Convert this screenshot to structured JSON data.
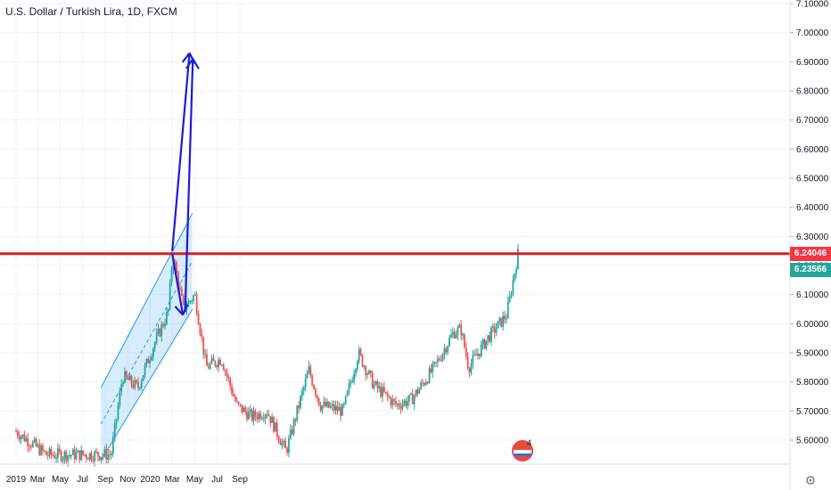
{
  "header": {
    "title": "U.S. Dollar / Turkish Lira, 1D, FXCM"
  },
  "price_labels": {
    "resistance": "6.24046",
    "last": "6.23566",
    "resistance_color": "#f23645",
    "last_color": "#26a69a"
  },
  "badge": {
    "text": "4",
    "icon": "flag-badge-icon"
  },
  "corner_icon": "settings-icon",
  "chart_data": {
    "type": "candlestick",
    "symbol": "U.S. Dollar / Turkish Lira",
    "interval": "1D",
    "source": "FXCM",
    "yaxis": {
      "ticks": [
        "5.60000",
        "5.70000",
        "5.80000",
        "5.90000",
        "6.00000",
        "6.10000",
        "6.20000",
        "6.30000",
        "6.40000",
        "6.50000",
        "6.60000",
        "6.70000",
        "6.80000",
        "6.90000",
        "7.00000",
        "7.10000"
      ],
      "ylim": [
        5.55,
        7.12
      ]
    },
    "xaxis": {
      "ticks": [
        "2019",
        "Mar",
        "May",
        "Jul",
        "Sep",
        "Nov",
        "2020",
        "Mar",
        "May",
        "Jul",
        "Sep"
      ]
    },
    "colors": {
      "up": "#26a69a",
      "down": "#ef5350",
      "channel": "#2196f3",
      "arrows": "#1b1bd6",
      "resistance": "#e01e1e"
    },
    "resistance_level": 6.24046,
    "last_price": 6.23566,
    "price_path": [
      {
        "t": 0,
        "p": 5.63
      },
      {
        "t": 0.04,
        "p": 5.55
      },
      {
        "t": 0.125,
        "p": 5.55
      },
      {
        "t": 0.14,
        "p": 5.82
      },
      {
        "t": 0.16,
        "p": 5.78
      },
      {
        "t": 0.18,
        "p": 5.92
      },
      {
        "t": 0.2,
        "p": 6.04
      },
      {
        "t": 0.206,
        "p": 6.24
      },
      {
        "t": 0.22,
        "p": 6.05
      },
      {
        "t": 0.235,
        "p": 6.1
      },
      {
        "t": 0.25,
        "p": 5.85
      },
      {
        "t": 0.27,
        "p": 5.88
      },
      {
        "t": 0.29,
        "p": 5.72
      },
      {
        "t": 0.31,
        "p": 5.68
      },
      {
        "t": 0.33,
        "p": 5.7
      },
      {
        "t": 0.355,
        "p": 5.56
      },
      {
        "t": 0.375,
        "p": 5.75
      },
      {
        "t": 0.385,
        "p": 5.84
      },
      {
        "t": 0.4,
        "p": 5.72
      },
      {
        "t": 0.43,
        "p": 5.7
      },
      {
        "t": 0.45,
        "p": 5.9
      },
      {
        "t": 0.47,
        "p": 5.79
      },
      {
        "t": 0.5,
        "p": 5.72
      },
      {
        "t": 0.52,
        "p": 5.74
      },
      {
        "t": 0.55,
        "p": 5.85
      },
      {
        "t": 0.575,
        "p": 5.97
      },
      {
        "t": 0.585,
        "p": 5.98
      },
      {
        "t": 0.595,
        "p": 5.85
      },
      {
        "t": 0.62,
        "p": 5.95
      },
      {
        "t": 0.645,
        "p": 6.03
      },
      {
        "t": 0.66,
        "p": 6.24
      }
    ],
    "channel": {
      "start_date": "2019-08-20",
      "end_date": "2020-04-25",
      "upper_start": 5.78,
      "upper_end": 6.38,
      "lower_start": 5.53,
      "lower_end": 6.05
    },
    "arrows": [
      {
        "from_date": "2020-03-01",
        "from_price": 6.24,
        "to_date": "2020-03-30",
        "to_price": 6.03
      },
      {
        "from_date": "2020-03-01",
        "from_price": 6.25,
        "to_date": "2020-04-17",
        "to_price": 6.93
      },
      {
        "from_date": "2020-04-05",
        "from_price": 6.04,
        "to_date": "2020-04-26",
        "to_price": 6.91
      }
    ]
  }
}
